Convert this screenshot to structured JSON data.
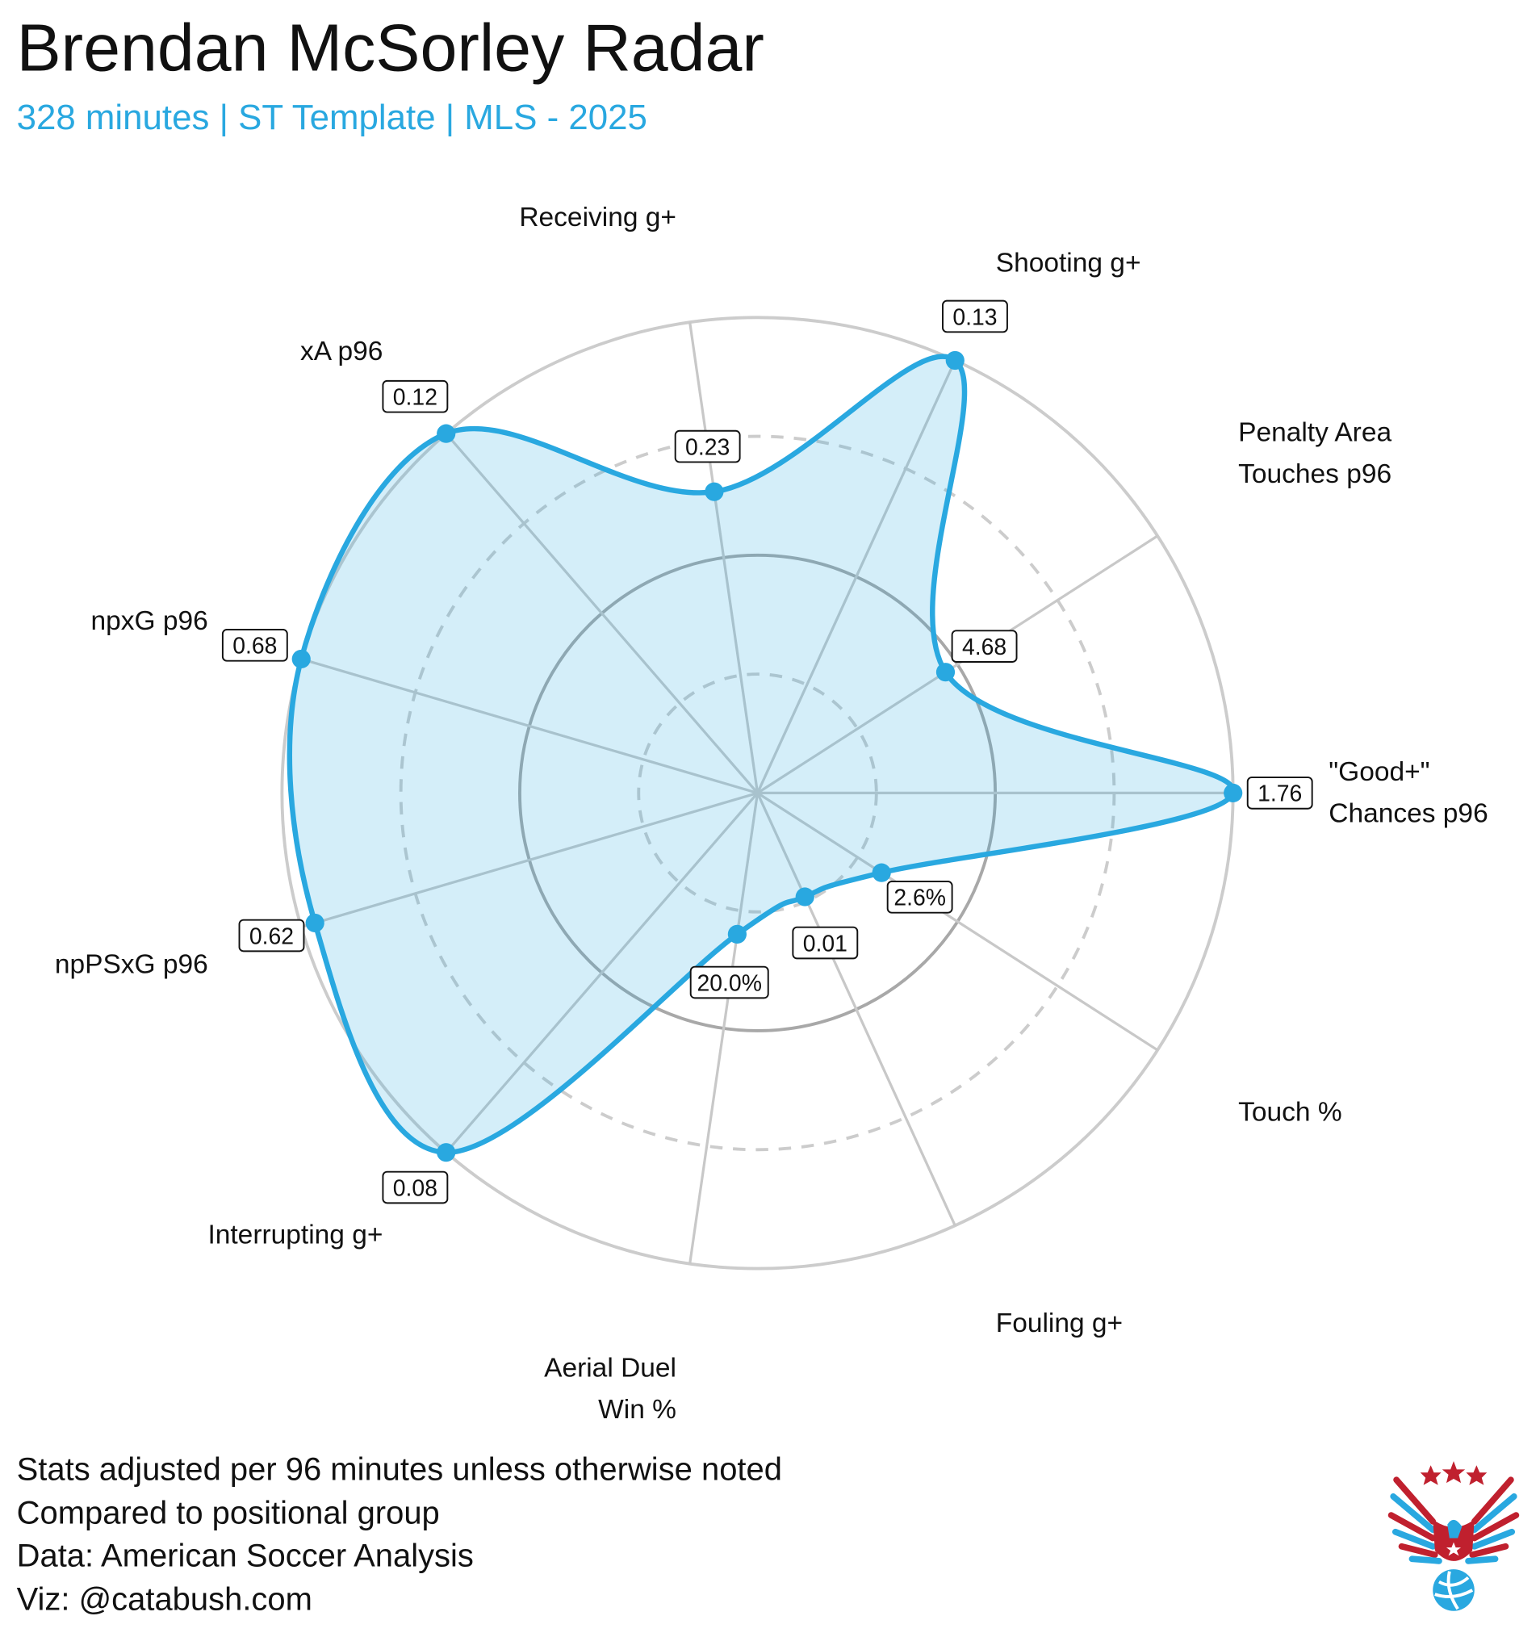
{
  "chart_data": {
    "type": "radar",
    "title": "Brendan McSorley Radar",
    "subtitle": "328 minutes | ST Template | MLS - 2025",
    "axes": [
      {
        "label": [
          "\"Good+\"",
          "Chances p96"
        ],
        "value_label": "1.76",
        "percentile": 1.0
      },
      {
        "label": [
          "Touch %"
        ],
        "value_label": "2.6%",
        "percentile": 0.31
      },
      {
        "label": [
          "Fouling g+"
        ],
        "value_label": "0.01",
        "percentile": 0.24
      },
      {
        "label": [
          "Aerial Duel",
          "Win %"
        ],
        "value_label": "20.0%",
        "percentile": 0.3
      },
      {
        "label": [
          "Interrupting g+"
        ],
        "value_label": "0.08",
        "percentile": 1.0
      },
      {
        "label": [
          "npPSxG p96"
        ],
        "value_label": "0.62",
        "percentile": 0.97
      },
      {
        "label": [
          "npxG p96"
        ],
        "value_label": "0.68",
        "percentile": 1.0
      },
      {
        "label": [
          "xA p96"
        ],
        "value_label": "0.12",
        "percentile": 1.0
      },
      {
        "label": [
          "Receiving g+"
        ],
        "value_label": "0.23",
        "percentile": 0.64
      },
      {
        "label": [
          "Shooting g+"
        ],
        "value_label": "0.13",
        "percentile": 1.0
      },
      {
        "label": [
          "Penalty Area",
          "Touches p96"
        ],
        "value_label": "4.68",
        "percentile": 0.47
      }
    ],
    "range": [
      0,
      1
    ],
    "rings": [
      0.25,
      0.5,
      0.75,
      1.0
    ],
    "series_color": "#29a8e0"
  },
  "footer": {
    "lines": [
      "Stats adjusted per 96 minutes unless otherwise noted",
      "Compared to positional group",
      "Data: American Soccer Analysis",
      "Viz: @catabush.com"
    ]
  },
  "colors": {
    "accent": "#29a8e0",
    "logo_red": "#c0202e",
    "logo_blue": "#29a8e0"
  }
}
